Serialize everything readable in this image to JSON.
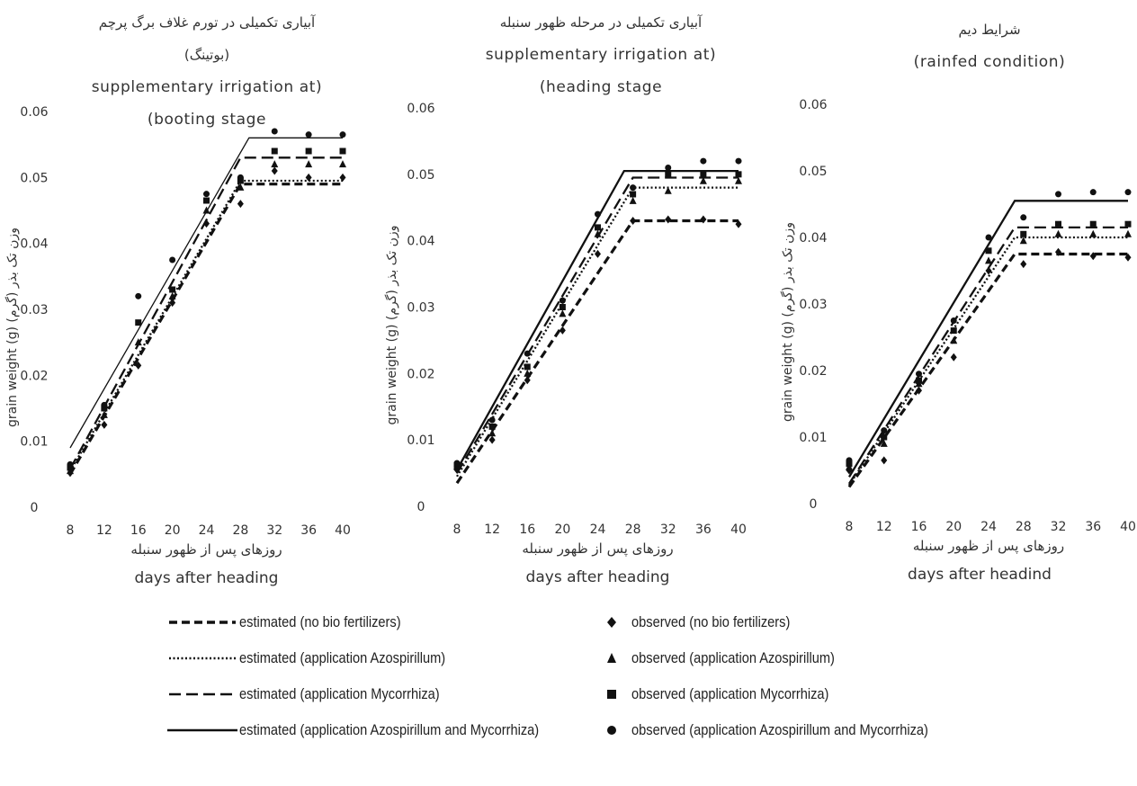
{
  "chart_data": [
    {
      "type": "line",
      "title_fa": "آبیاری تکمیلی در تورم غلاف برگ پرچم",
      "title_fa2": "(بوتینگ)",
      "title_en": "supplementary irrigation at)",
      "title_en2": "(booting stage",
      "xlabel_fa": "روزهای پس از ظهور سنبله",
      "xlabel": "days after heading",
      "ylabel": "grain weight (g) وزن تک بذر (گرم)",
      "x_ticks": [
        8,
        12,
        16,
        20,
        24,
        28,
        32,
        36,
        40
      ],
      "y_ticks": [
        "0",
        "0.01",
        "0.02",
        "0.03",
        "0.04",
        "0.05",
        "0.06"
      ],
      "xlim": [
        8,
        40
      ],
      "ylim": [
        0,
        0.06
      ],
      "series": [
        {
          "name": "estimated (no bio fertilizers)",
          "kind": "estimated",
          "x": [
            8,
            28,
            40
          ],
          "y": [
            0.005,
            0.049,
            0.049
          ]
        },
        {
          "name": "estimated (application Azospirillum)",
          "kind": "estimated",
          "x": [
            8,
            28,
            40
          ],
          "y": [
            0.0055,
            0.0495,
            0.0495
          ]
        },
        {
          "name": "estimated (application Mycorrhiza)",
          "kind": "estimated",
          "x": [
            8,
            28,
            40
          ],
          "y": [
            0.0058,
            0.053,
            0.053
          ]
        },
        {
          "name": "estimated (application Azospirillum and Mycorrhiza)",
          "kind": "estimated",
          "x": [
            8,
            29,
            40
          ],
          "y": [
            0.009,
            0.056,
            0.056
          ]
        },
        {
          "name": "observed (no bio fertilizers)",
          "kind": "observed",
          "x": [
            8,
            12,
            16,
            20,
            24,
            28,
            32,
            36,
            40
          ],
          "y": [
            0.0052,
            0.0125,
            0.0215,
            0.031,
            0.043,
            0.046,
            0.051,
            0.05,
            0.05
          ]
        },
        {
          "name": "observed (application Azospirillum)",
          "kind": "observed",
          "x": [
            8,
            12,
            16,
            20,
            24,
            28,
            32,
            36,
            40
          ],
          "y": [
            0.0055,
            0.014,
            0.025,
            0.032,
            0.045,
            0.0485,
            0.052,
            0.052,
            0.052
          ]
        },
        {
          "name": "observed (application Mycorrhiza)",
          "kind": "observed",
          "x": [
            8,
            12,
            16,
            20,
            24,
            28,
            32,
            36,
            40
          ],
          "y": [
            0.006,
            0.015,
            0.028,
            0.033,
            0.0465,
            0.0495,
            0.054,
            0.054,
            0.054
          ]
        },
        {
          "name": "observed (application Azospirillum and Mycorrhiza)",
          "kind": "observed",
          "x": [
            8,
            12,
            16,
            20,
            24,
            28,
            32,
            36,
            40
          ],
          "y": [
            0.0065,
            0.0155,
            0.032,
            0.0375,
            0.0475,
            0.05,
            0.057,
            0.0565,
            0.0565
          ]
        }
      ]
    },
    {
      "type": "line",
      "title_fa": "آبیاری تکمیلی در مرحله ظهور سنبله",
      "title_fa2": "",
      "title_en": "supplementary irrigation at)",
      "title_en2": "(heading stage",
      "xlabel_fa": "روزهای پس از ظهور سنبله",
      "xlabel": "days after heading",
      "ylabel": "grain weight (g) وزن تک بذر (گرم)",
      "x_ticks": [
        8,
        12,
        16,
        20,
        24,
        28,
        32,
        36,
        40
      ],
      "y_ticks": [
        "0",
        "0.01",
        "0.02",
        "0.03",
        "0.04",
        "0.05",
        "0.06"
      ],
      "xlim": [
        8,
        40
      ],
      "ylim": [
        0,
        0.06
      ],
      "series": [
        {
          "name": "estimated (no bio fertilizers)",
          "kind": "estimated",
          "x": [
            8,
            28,
            40
          ],
          "y": [
            0.0035,
            0.043,
            0.043
          ]
        },
        {
          "name": "estimated (application Azospirillum)",
          "kind": "estimated",
          "x": [
            8,
            28,
            40
          ],
          "y": [
            0.0045,
            0.048,
            0.048
          ]
        },
        {
          "name": "estimated (application Mycorrhiza)",
          "kind": "estimated",
          "x": [
            8,
            28,
            40
          ],
          "y": [
            0.005,
            0.0495,
            0.0495
          ]
        },
        {
          "name": "estimated (application Azospirillum and Mycorrhiza)",
          "kind": "estimated",
          "x": [
            8,
            27,
            40
          ],
          "y": [
            0.0055,
            0.0505,
            0.0505
          ]
        },
        {
          "name": "observed (no bio fertilizers)",
          "kind": "observed",
          "x": [
            8,
            12,
            16,
            20,
            24,
            28,
            32,
            36,
            40
          ],
          "y": [
            0.0055,
            0.01,
            0.019,
            0.0265,
            0.038,
            0.043,
            0.0432,
            0.0432,
            0.0425
          ]
        },
        {
          "name": "observed (application Azospirillum)",
          "kind": "observed",
          "x": [
            8,
            12,
            16,
            20,
            24,
            28,
            32,
            36,
            40
          ],
          "y": [
            0.006,
            0.011,
            0.02,
            0.029,
            0.041,
            0.046,
            0.0475,
            0.049,
            0.049
          ]
        },
        {
          "name": "observed (application Mycorrhiza)",
          "kind": "observed",
          "x": [
            8,
            12,
            16,
            20,
            24,
            28,
            32,
            36,
            40
          ],
          "y": [
            0.0062,
            0.012,
            0.021,
            0.03,
            0.042,
            0.047,
            0.05,
            0.05,
            0.05
          ]
        },
        {
          "name": "observed (application Azospirillum and Mycorrhiza)",
          "kind": "observed",
          "x": [
            8,
            12,
            16,
            20,
            24,
            28,
            32,
            36,
            40
          ],
          "y": [
            0.0065,
            0.013,
            0.023,
            0.031,
            0.044,
            0.048,
            0.051,
            0.052,
            0.052
          ]
        }
      ]
    },
    {
      "type": "line",
      "title_fa": "شرایط دیم",
      "title_fa2": "",
      "title_en": "(rainfed condition)",
      "title_en2": "",
      "xlabel_fa": "روزهای پس از ظهور سنبله",
      "xlabel": "days after headind",
      "ylabel": "grain weight (g) وزن تک بذر (گرم)",
      "x_ticks": [
        8,
        12,
        16,
        20,
        24,
        28,
        32,
        36,
        40
      ],
      "y_ticks": [
        "0",
        "0.01",
        "0.02",
        "0.03",
        "0.04",
        "0.05",
        "0.06"
      ],
      "xlim": [
        8,
        40
      ],
      "ylim": [
        0,
        0.06
      ],
      "series": [
        {
          "name": "estimated (no bio fertilizers)",
          "kind": "estimated",
          "x": [
            8,
            27,
            40
          ],
          "y": [
            0.0025,
            0.0375,
            0.0375
          ]
        },
        {
          "name": "estimated (application Azospirillum)",
          "kind": "estimated",
          "x": [
            8,
            27,
            40
          ],
          "y": [
            0.0028,
            0.04,
            0.04
          ]
        },
        {
          "name": "estimated (application Mycorrhiza)",
          "kind": "estimated",
          "x": [
            8,
            27,
            40
          ],
          "y": [
            0.003,
            0.0415,
            0.0415
          ]
        },
        {
          "name": "estimated (application Azospirillum and Mycorrhiza)",
          "kind": "estimated",
          "x": [
            8,
            27,
            40
          ],
          "y": [
            0.004,
            0.0455,
            0.0455
          ]
        },
        {
          "name": "observed (no bio fertilizers)",
          "kind": "observed",
          "x": [
            8,
            12,
            16,
            20,
            24,
            28,
            32,
            36,
            40
          ],
          "y": [
            0.005,
            0.0065,
            0.017,
            0.022,
            0.035,
            0.036,
            0.0378,
            0.0372,
            0.037
          ]
        },
        {
          "name": "observed (application Azospirillum)",
          "kind": "observed",
          "x": [
            8,
            12,
            16,
            20,
            24,
            28,
            32,
            36,
            40
          ],
          "y": [
            0.0055,
            0.009,
            0.018,
            0.0245,
            0.0365,
            0.0395,
            0.0405,
            0.0405,
            0.0405
          ]
        },
        {
          "name": "observed (application Mycorrhiza)",
          "kind": "observed",
          "x": [
            8,
            12,
            16,
            20,
            24,
            28,
            32,
            36,
            40
          ],
          "y": [
            0.006,
            0.01,
            0.0185,
            0.026,
            0.038,
            0.0405,
            0.042,
            0.042,
            0.042
          ]
        },
        {
          "name": "observed (application Azospirillum and Mycorrhiza)",
          "kind": "observed",
          "x": [
            8,
            12,
            16,
            20,
            24,
            28,
            32,
            36,
            40
          ],
          "y": [
            0.0065,
            0.011,
            0.0195,
            0.0275,
            0.04,
            0.043,
            0.0465,
            0.0468,
            0.0468
          ]
        }
      ]
    }
  ],
  "legend": [
    {
      "label": "estimated (no bio fertilizers)",
      "symbol": "dash-heavy"
    },
    {
      "label": "estimated (application Azospirillum)",
      "symbol": "dotted"
    },
    {
      "label": "estimated (application Mycorrhiza)",
      "symbol": "dash-long"
    },
    {
      "label": "estimated (application Azospirillum and Mycorrhiza)",
      "symbol": "solid"
    },
    {
      "label": "observed (no bio fertilizers)",
      "symbol": "diamond"
    },
    {
      "label": "observed (application Azospirillum)",
      "symbol": "triangle"
    },
    {
      "label": "observed (application Mycorrhiza)",
      "symbol": "square"
    },
    {
      "label": "observed (application Azospirillum and Mycorrhiza)",
      "symbol": "circle"
    }
  ],
  "colors": {
    "ink": "#111111",
    "axis_text": "#333333",
    "background": "#ffffff"
  }
}
